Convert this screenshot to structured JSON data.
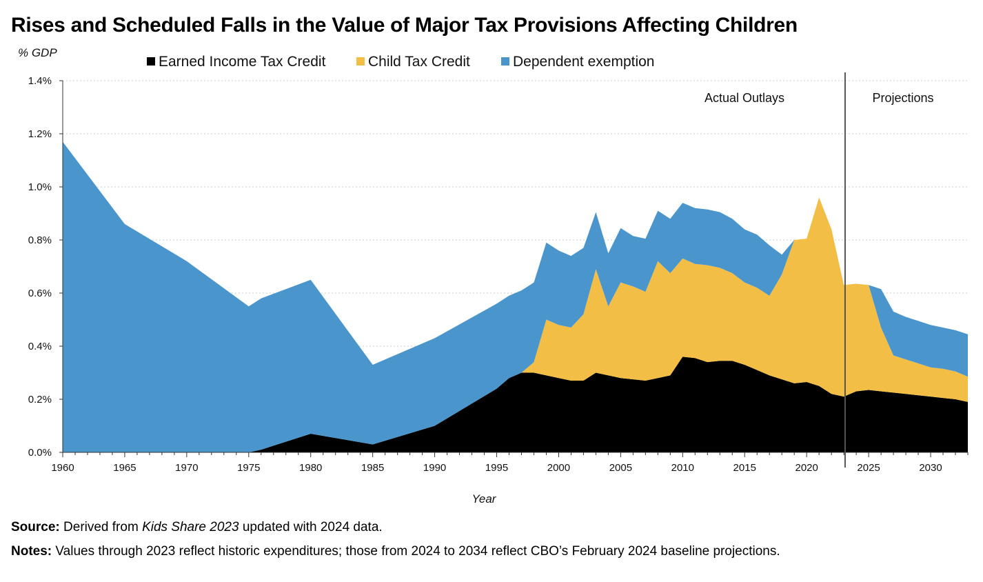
{
  "title": "Rises and Scheduled Falls in the Value of Major Tax Provisions Affecting Children",
  "footer": {
    "source_label": "Source:",
    "source_pre": "Derived from ",
    "source_italic": "Kids Share 2023",
    "source_post": " updated with 2024 data.",
    "notes_label": "Notes:",
    "notes_text": "Values through 2023 reflect historic expenditures; those from 2024 to 2034 reflect CBO’s February 2024 baseline projections."
  },
  "colors": {
    "eitc": "#000000",
    "ctc": "#F2BE45",
    "dependent": "#4A96CC",
    "grid": "#CCCCCC",
    "divider": "#555555"
  },
  "chart_data": {
    "type": "area",
    "stacked": true,
    "title": "Rises and Scheduled Falls in the Value of Major Tax Provisions Affecting Children",
    "xlabel": "Year",
    "ylabel": "% GDP",
    "xlim": [
      1960,
      2033
    ],
    "ylim": [
      0,
      1.4
    ],
    "y_ticks": [
      0.0,
      0.2,
      0.4,
      0.6,
      0.8,
      1.0,
      1.2,
      1.4
    ],
    "y_tick_labels": [
      "0.0%",
      "0.2%",
      "0.4%",
      "0.6%",
      "0.8%",
      "1.0%",
      "1.2%",
      "1.4%"
    ],
    "x_ticks": [
      1960,
      1965,
      1970,
      1975,
      1980,
      1985,
      1990,
      1995,
      2000,
      2005,
      2010,
      2015,
      2020,
      2025,
      2030
    ],
    "x_tick_labels": [
      "1960",
      "1965",
      "1970",
      "1975",
      "1980",
      "1985",
      "1990",
      "1995",
      "2000",
      "2005",
      "2010",
      "2015",
      "2020",
      "2025",
      "2030"
    ],
    "grid": "horizontal dotted",
    "legend_position": "top",
    "divider_year": 2023.1,
    "annotations": [
      "Actual Outlays",
      "Projections"
    ],
    "x": [
      1960,
      1965,
      1970,
      1975,
      1976,
      1980,
      1985,
      1990,
      1995,
      1996,
      1997,
      1998,
      1999,
      2000,
      2001,
      2002,
      2003,
      2004,
      2005,
      2006,
      2007,
      2008,
      2009,
      2010,
      2011,
      2012,
      2013,
      2014,
      2015,
      2016,
      2017,
      2018,
      2019,
      2020,
      2021,
      2022,
      2023,
      2024,
      2025,
      2026,
      2027,
      2028,
      2029,
      2030,
      2031,
      2032,
      2033
    ],
    "series": [
      {
        "name": "Earned Income Tax Credit",
        "values": [
          0.0,
          0.0,
          0.0,
          0.0,
          0.01,
          0.07,
          0.03,
          0.1,
          0.24,
          0.28,
          0.3,
          0.3,
          0.29,
          0.28,
          0.27,
          0.27,
          0.3,
          0.29,
          0.28,
          0.275,
          0.27,
          0.28,
          0.29,
          0.36,
          0.355,
          0.34,
          0.345,
          0.345,
          0.33,
          0.31,
          0.29,
          0.275,
          0.26,
          0.265,
          0.25,
          0.22,
          0.21,
          0.23,
          0.235,
          0.23,
          0.225,
          0.22,
          0.215,
          0.21,
          0.205,
          0.2,
          0.19
        ]
      },
      {
        "name": "Child Tax Credit",
        "values": [
          0.0,
          0.0,
          0.0,
          0.0,
          0.0,
          0.0,
          0.0,
          0.0,
          0.0,
          0.0,
          0.0,
          0.04,
          0.21,
          0.2,
          0.2,
          0.25,
          0.39,
          0.26,
          0.36,
          0.35,
          0.335,
          0.44,
          0.385,
          0.37,
          0.355,
          0.365,
          0.35,
          0.33,
          0.31,
          0.31,
          0.3,
          0.395,
          0.54,
          0.54,
          0.71,
          0.62,
          0.42,
          0.405,
          0.395,
          0.24,
          0.14,
          0.13,
          0.12,
          0.11,
          0.11,
          0.105,
          0.095
        ]
      },
      {
        "name": "Dependent exemption",
        "values": [
          1.17,
          0.86,
          0.72,
          0.55,
          0.57,
          0.58,
          0.3,
          0.33,
          0.32,
          0.31,
          0.31,
          0.3,
          0.29,
          0.28,
          0.27,
          0.25,
          0.215,
          0.2,
          0.205,
          0.19,
          0.2,
          0.19,
          0.205,
          0.21,
          0.21,
          0.21,
          0.21,
          0.205,
          0.2,
          0.2,
          0.19,
          0.075,
          0.0,
          0.0,
          0.0,
          0.0,
          0.0,
          0.0,
          0.0,
          0.145,
          0.165,
          0.16,
          0.16,
          0.16,
          0.155,
          0.155,
          0.16
        ]
      }
    ]
  }
}
